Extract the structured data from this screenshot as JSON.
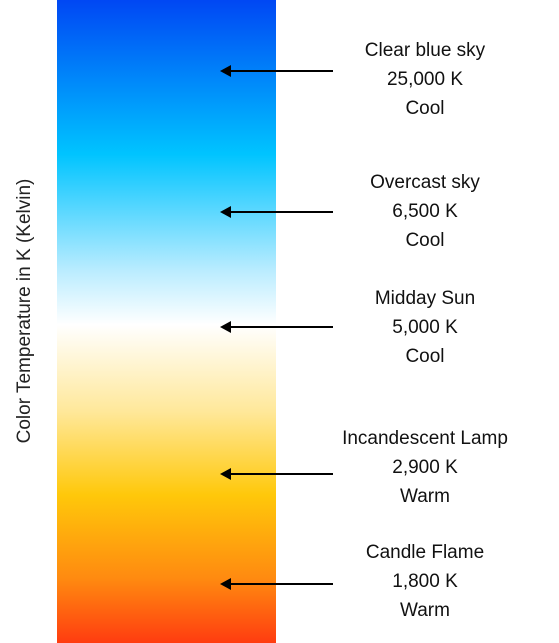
{
  "axis_label": "Color Temperature in K (Kelvin)",
  "gradient": {
    "stops": [
      {
        "offset": 0,
        "color": "#0047f4"
      },
      {
        "offset": 0.24,
        "color": "#00c4ff"
      },
      {
        "offset": 0.42,
        "color": "#b9ecff"
      },
      {
        "offset": 0.505,
        "color": "#ffffff"
      },
      {
        "offset": 0.64,
        "color": "#ffe89a"
      },
      {
        "offset": 0.77,
        "color": "#ffc80a"
      },
      {
        "offset": 0.9,
        "color": "#ff8a10"
      },
      {
        "offset": 1,
        "color": "#ff3c10"
      }
    ]
  },
  "markers": [
    {
      "name": "Clear blue sky",
      "value": "25,000 K",
      "tone": "Cool"
    },
    {
      "name": "Overcast sky",
      "value": "6,500 K",
      "tone": "Cool"
    },
    {
      "name": "Midday Sun",
      "value": "5,000 K",
      "tone": "Cool"
    },
    {
      "name": "Incandescent Lamp",
      "value": "2,900 K",
      "tone": "Warm"
    },
    {
      "name": "Candle Flame",
      "value": "1,800 K",
      "tone": "Warm"
    }
  ]
}
